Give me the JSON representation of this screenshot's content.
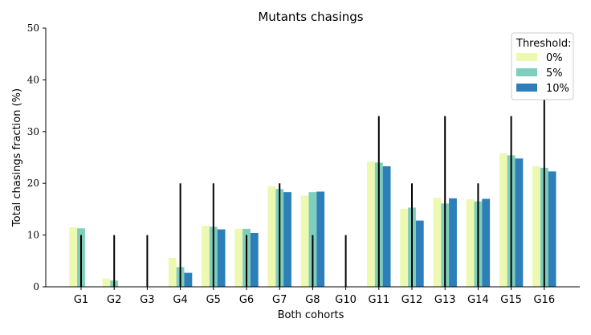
{
  "chart_data": {
    "type": "bar",
    "title": "Mutants chasings",
    "xlabel": "Both cohorts",
    "ylabel": "Total chasings fraction (%)",
    "ylim": [
      0,
      50
    ],
    "yticks": [
      0,
      10,
      20,
      30,
      40,
      50
    ],
    "grid": false,
    "legend": {
      "title": "Threshold:",
      "position": "top-right"
    },
    "categories": [
      "G1",
      "G2",
      "G3",
      "G4",
      "G5",
      "G6",
      "G7",
      "G8",
      "G10",
      "G11",
      "G12",
      "G13",
      "G14",
      "G15",
      "G16"
    ],
    "series": [
      {
        "name": "0%",
        "color": "#edf8b1",
        "values": [
          11.5,
          1.6,
          0,
          5.6,
          11.8,
          11.2,
          19.4,
          17.6,
          0,
          24.2,
          15.1,
          17.2,
          16.9,
          25.8,
          23.3
        ]
      },
      {
        "name": "5%",
        "color": "#7fcdbb",
        "values": [
          11.3,
          1.2,
          0,
          3.8,
          11.6,
          11.2,
          18.9,
          18.3,
          0,
          24.0,
          15.3,
          16.1,
          16.5,
          25.4,
          23.0
        ]
      },
      {
        "name": "10%",
        "color": "#2c7fb8",
        "values": [
          0,
          0,
          0,
          2.7,
          11.1,
          10.4,
          18.3,
          18.4,
          0,
          23.3,
          12.8,
          17.1,
          17.0,
          24.8,
          22.3
        ]
      }
    ],
    "error_lines": [
      10,
      10,
      10,
      20,
      20,
      10,
      20,
      10,
      10,
      33,
      20,
      33,
      20,
      33,
      40
    ]
  }
}
